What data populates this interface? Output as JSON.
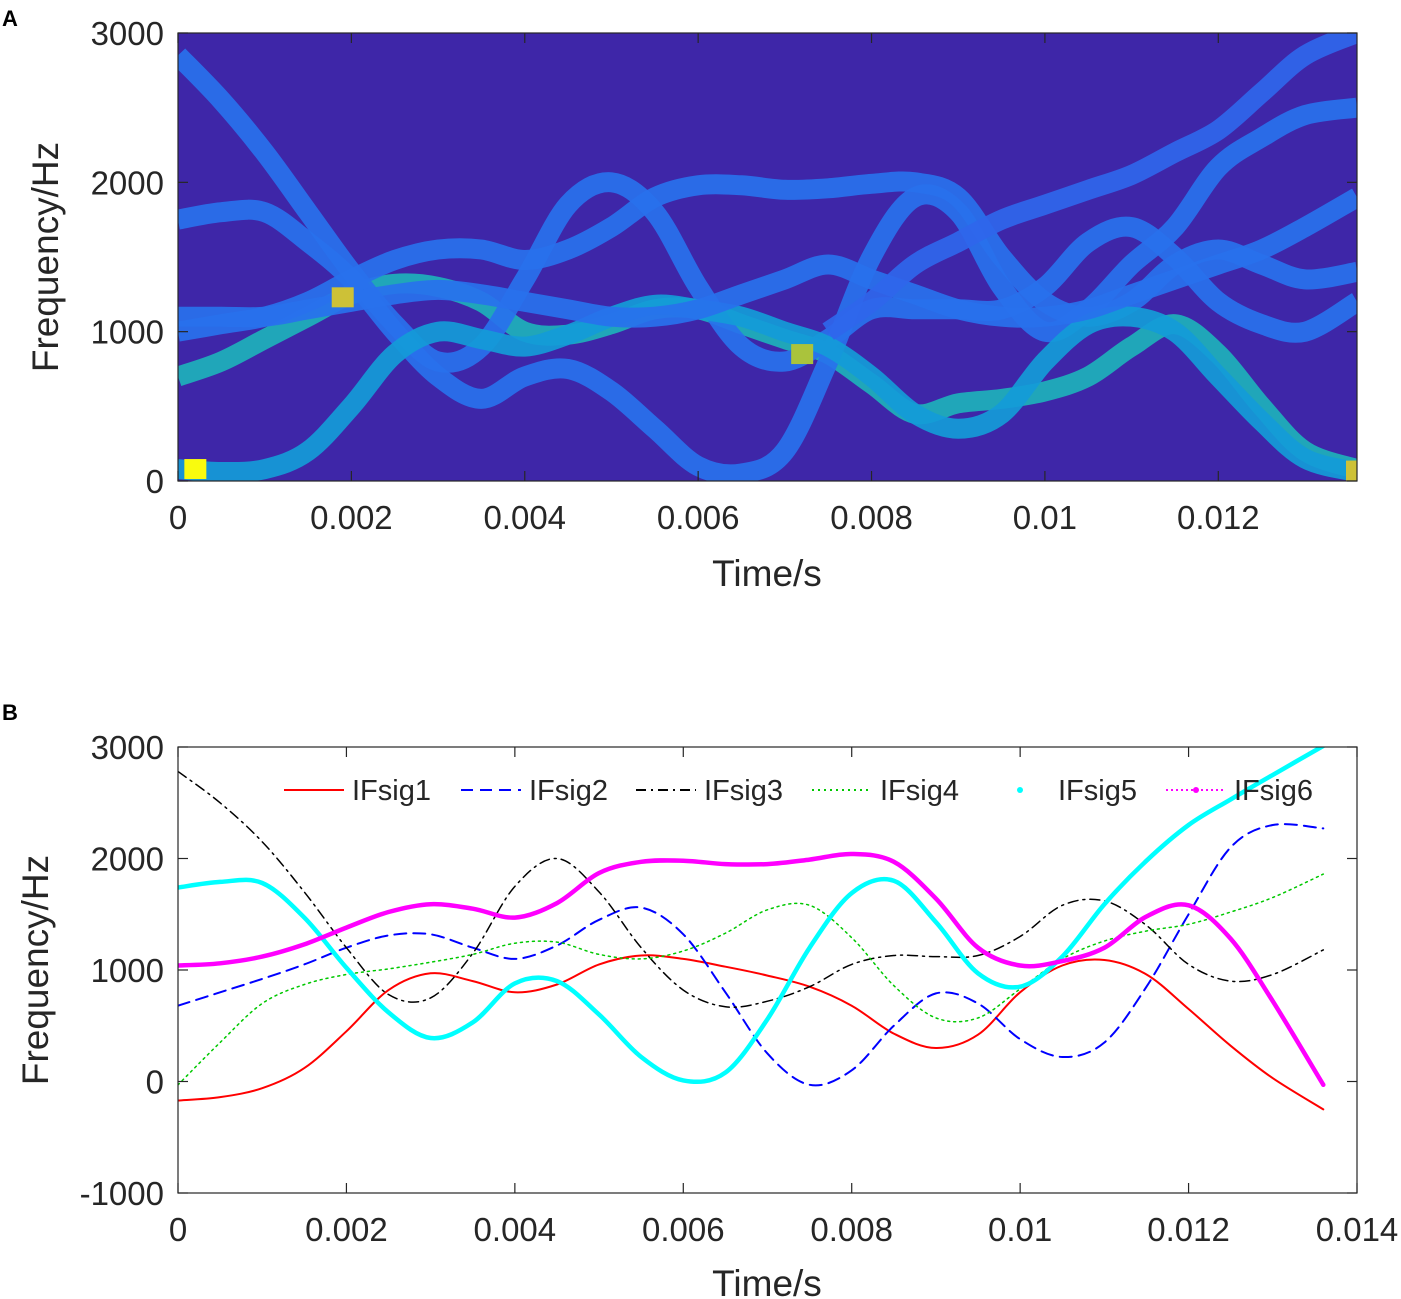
{
  "panels": {
    "a": "A",
    "b": "B"
  },
  "chart_data": [
    {
      "type": "heatmap",
      "panel": "A",
      "xlabel": "Time/s",
      "ylabel": "Frequency/Hz",
      "xlim": [
        0,
        0.0136
      ],
      "ylim": [
        0,
        3000
      ],
      "xticks": [
        0,
        0.002,
        0.004,
        0.006,
        0.008,
        0.01,
        0.012
      ],
      "xtick_labels": [
        "0",
        "0.002",
        "0.004",
        "0.006",
        "0.008",
        "0.01",
        "0.012"
      ],
      "yticks": [
        0,
        1000,
        2000,
        3000
      ],
      "ytick_labels": [
        "0",
        "1000",
        "2000",
        "3000"
      ],
      "colormap": "parula",
      "background_color": "#3e26a8",
      "ridges": [
        {
          "intensity": 0.55,
          "t": [
            0,
            0.0005,
            0.001,
            0.0015,
            0.002,
            0.0025,
            0.003,
            0.0035,
            0.004,
            0.0045,
            0.005,
            0.0055,
            0.006,
            0.0065,
            0.007,
            0.0075,
            0.008,
            0.0085,
            0.009,
            0.0095,
            0.01,
            0.0105,
            0.011,
            0.0115,
            0.012,
            0.0125,
            0.013,
            0.0136
          ],
          "f": [
            700,
            800,
            950,
            1100,
            1250,
            1320,
            1300,
            1200,
            1000,
            980,
            1050,
            1150,
            1150,
            1050,
            950,
            850,
            650,
            450,
            520,
            550,
            600,
            700,
            900,
            1050,
            850,
            500,
            200,
            80
          ]
        },
        {
          "intensity": 0.3,
          "t": [
            0,
            0.0005,
            0.001,
            0.0015,
            0.002,
            0.0025,
            0.003,
            0.0035,
            0.004,
            0.0045,
            0.005,
            0.0055,
            0.006,
            0.0065,
            0.007,
            0.0075,
            0.008,
            0.0085,
            0.009,
            0.0095,
            0.01,
            0.0105,
            0.011,
            0.0115,
            0.012,
            0.0125,
            0.013,
            0.0136
          ],
          "f": [
            1750,
            1800,
            1800,
            1600,
            1350,
            1000,
            700,
            550,
            700,
            750,
            600,
            350,
            100,
            50,
            200,
            800,
            1500,
            1900,
            1800,
            1300,
            1000,
            1150,
            1450,
            1700,
            2100,
            2300,
            2450,
            2500
          ]
        },
        {
          "intensity": 0.3,
          "t": [
            0,
            0.0005,
            0.001,
            0.0015,
            0.002,
            0.0025,
            0.003,
            0.0035,
            0.004,
            0.0045,
            0.005,
            0.0055,
            0.006,
            0.0065,
            0.007,
            0.0075,
            0.008,
            0.0085,
            0.009,
            0.0095,
            0.01,
            0.0105,
            0.011,
            0.0115,
            0.012,
            0.0125,
            0.013,
            0.0136
          ],
          "f": [
            1000,
            1050,
            1100,
            1200,
            1350,
            1480,
            1550,
            1550,
            1480,
            1550,
            1700,
            1900,
            1980,
            1980,
            1950,
            1960,
            1990,
            2000,
            1900,
            1500,
            1200,
            1100,
            1200,
            1450,
            1550,
            1450,
            1350,
            1400
          ]
        },
        {
          "intensity": 0.3,
          "t": [
            0,
            0.0005,
            0.001,
            0.0015,
            0.002,
            0.0025,
            0.003,
            0.0035,
            0.004,
            0.0045,
            0.005,
            0.0055,
            0.006,
            0.0065,
            0.007,
            0.0075,
            0.008,
            0.0085,
            0.009,
            0.0095,
            0.01,
            0.0105,
            0.011,
            0.0115,
            0.012,
            0.0125,
            0.013,
            0.0136
          ],
          "f": [
            2850,
            2550,
            2200,
            1800,
            1400,
            1050,
            800,
            900,
            1350,
            1850,
            2000,
            1800,
            1300,
            900,
            800,
            950,
            1150,
            1150,
            1150,
            1150,
            1300,
            1600,
            1700,
            1500,
            1200,
            1050,
            1000,
            1200
          ]
        },
        {
          "intensity": 0.45,
          "t": [
            0,
            0.0005,
            0.001,
            0.0015,
            0.002,
            0.0025,
            0.003,
            0.0035,
            0.004,
            0.0045,
            0.005,
            0.0055,
            0.006,
            0.0065,
            0.007,
            0.0075,
            0.008,
            0.0085,
            0.009,
            0.0095,
            0.01,
            0.0105,
            0.011,
            0.0115,
            0.012,
            0.0125,
            0.013,
            0.0136
          ],
          "f": [
            80,
            60,
            80,
            200,
            500,
            850,
            1000,
            950,
            900,
            980,
            1100,
            1180,
            1150,
            1100,
            1000,
            900,
            700,
            450,
            350,
            450,
            800,
            1050,
            1100,
            1000,
            700,
            400,
            150,
            60
          ]
        },
        {
          "intensity": 0.3,
          "t": [
            0,
            0.0005,
            0.001,
            0.0015,
            0.002,
            0.0025,
            0.003,
            0.0035,
            0.004,
            0.0045,
            0.005,
            0.0055,
            0.006,
            0.0065,
            0.007,
            0.0075,
            0.008,
            0.0085,
            0.009,
            0.0095,
            0.01,
            0.0105,
            0.011,
            0.0115,
            0.012,
            0.0125,
            0.013,
            0.0136
          ],
          "f": [
            1100,
            1100,
            1100,
            1150,
            1200,
            1250,
            1280,
            1250,
            1200,
            1150,
            1100,
            1100,
            1150,
            1250,
            1350,
            1450,
            1350,
            1250,
            1150,
            1100,
            1100,
            1150,
            1250,
            1350,
            1450,
            1550,
            1700,
            1900
          ]
        },
        {
          "intensity": 0.25,
          "t": [
            0.0075,
            0.008,
            0.0085,
            0.009,
            0.0095,
            0.01,
            0.0105,
            0.011,
            0.0115,
            0.012,
            0.0125,
            0.013,
            0.0136
          ],
          "f": [
            1000,
            1200,
            1450,
            1600,
            1750,
            1850,
            1950,
            2050,
            2200,
            2350,
            2600,
            2850,
            3000
          ]
        }
      ],
      "hotspots": [
        {
          "t": 0.0002,
          "f": 80,
          "intensity": 1.0
        },
        {
          "t": 0.0019,
          "f": 1230,
          "intensity": 0.85
        },
        {
          "t": 0.0072,
          "f": 850,
          "intensity": 0.8
        },
        {
          "t": 0.0136,
          "f": 70,
          "intensity": 0.85
        }
      ]
    },
    {
      "type": "line",
      "panel": "B",
      "xlabel": "Time/s",
      "ylabel": "Frequency/Hz",
      "xlim": [
        0,
        0.014
      ],
      "ylim": [
        -1000,
        3000
      ],
      "xticks": [
        0,
        0.002,
        0.004,
        0.006,
        0.008,
        0.01,
        0.012,
        0.014
      ],
      "xtick_labels": [
        "0",
        "0.002",
        "0.004",
        "0.006",
        "0.008",
        "0.01",
        "0.012",
        "0.014"
      ],
      "yticks": [
        -1000,
        0,
        1000,
        2000,
        3000
      ],
      "ytick_labels": [
        "-1000",
        "0",
        "1000",
        "2000",
        "3000"
      ],
      "legend_position": "top",
      "series": [
        {
          "name": "IFsig1",
          "color": "#ff0000",
          "dash": "solid",
          "width": 2,
          "t": [
            0,
            0.0005,
            0.001,
            0.0015,
            0.002,
            0.0025,
            0.003,
            0.0035,
            0.004,
            0.0045,
            0.005,
            0.0055,
            0.006,
            0.0065,
            0.007,
            0.0075,
            0.008,
            0.0085,
            0.009,
            0.0095,
            0.01,
            0.0105,
            0.011,
            0.0115,
            0.012,
            0.0125,
            0.013,
            0.0136
          ],
          "f": [
            -170,
            -140,
            -60,
            120,
            450,
            820,
            970,
            900,
            800,
            870,
            1050,
            1130,
            1100,
            1030,
            950,
            850,
            680,
            430,
            300,
            420,
            800,
            1040,
            1090,
            960,
            650,
            320,
            30,
            -250
          ]
        },
        {
          "name": "IFsig2",
          "color": "#0000ff",
          "dash": "dash",
          "width": 2,
          "t": [
            0,
            0.0005,
            0.001,
            0.0015,
            0.002,
            0.0025,
            0.003,
            0.0035,
            0.004,
            0.0045,
            0.005,
            0.0055,
            0.006,
            0.0065,
            0.007,
            0.0075,
            0.008,
            0.0085,
            0.009,
            0.0095,
            0.01,
            0.0105,
            0.011,
            0.0115,
            0.012,
            0.0125,
            0.013,
            0.0136
          ],
          "f": [
            680,
            800,
            920,
            1050,
            1200,
            1310,
            1320,
            1200,
            1100,
            1220,
            1450,
            1560,
            1320,
            800,
            250,
            -30,
            100,
            500,
            790,
            700,
            380,
            220,
            350,
            850,
            1500,
            2100,
            2300,
            2270
          ]
        },
        {
          "name": "IFsig3",
          "color": "#000000",
          "dash": "dashdot",
          "width": 1.5,
          "t": [
            0,
            0.0005,
            0.001,
            0.0015,
            0.002,
            0.0025,
            0.003,
            0.0035,
            0.004,
            0.0045,
            0.005,
            0.0055,
            0.006,
            0.0065,
            0.007,
            0.0075,
            0.008,
            0.0085,
            0.009,
            0.0095,
            0.01,
            0.0105,
            0.011,
            0.0115,
            0.012,
            0.0125,
            0.013,
            0.0136
          ],
          "f": [
            2780,
            2500,
            2150,
            1700,
            1200,
            780,
            750,
            1150,
            1750,
            2000,
            1700,
            1200,
            820,
            670,
            720,
            850,
            1050,
            1130,
            1120,
            1130,
            1300,
            1580,
            1620,
            1400,
            1050,
            900,
            960,
            1180
          ]
        },
        {
          "name": "IFsig4",
          "color": "#00c800",
          "dash": "dot",
          "width": 1.5,
          "t": [
            0,
            0.0005,
            0.001,
            0.0015,
            0.002,
            0.0025,
            0.003,
            0.0035,
            0.004,
            0.0045,
            0.005,
            0.0055,
            0.006,
            0.0065,
            0.007,
            0.0075,
            0.008,
            0.0085,
            0.009,
            0.0095,
            0.01,
            0.0105,
            0.011,
            0.0115,
            0.012,
            0.0125,
            0.013,
            0.0136
          ],
          "f": [
            -30,
            350,
            700,
            870,
            960,
            1010,
            1070,
            1140,
            1240,
            1250,
            1140,
            1100,
            1170,
            1330,
            1540,
            1580,
            1290,
            860,
            570,
            570,
            830,
            1100,
            1260,
            1350,
            1410,
            1520,
            1650,
            1860
          ]
        },
        {
          "name": "IFsig5",
          "color": "#00ffff",
          "dash": "solid",
          "width": 4.5,
          "t": [
            0,
            0.0005,
            0.001,
            0.0015,
            0.002,
            0.0025,
            0.003,
            0.0035,
            0.004,
            0.0045,
            0.005,
            0.0055,
            0.006,
            0.0065,
            0.007,
            0.0075,
            0.008,
            0.0085,
            0.009,
            0.0095,
            0.01,
            0.0105,
            0.011,
            0.0115,
            0.012,
            0.0125,
            0.013,
            0.0136
          ],
          "f": [
            1740,
            1790,
            1780,
            1470,
            1020,
            620,
            390,
            530,
            880,
            900,
            600,
            220,
            10,
            80,
            560,
            1200,
            1690,
            1800,
            1430,
            970,
            850,
            1120,
            1590,
            1980,
            2300,
            2530,
            2750,
            3010
          ]
        },
        {
          "name": "IFsig6",
          "color": "#ff00ff",
          "dash": "dotmark",
          "width": 4.5,
          "t": [
            0,
            0.0005,
            0.001,
            0.0015,
            0.002,
            0.0025,
            0.003,
            0.0035,
            0.004,
            0.0045,
            0.005,
            0.0055,
            0.006,
            0.0065,
            0.007,
            0.0075,
            0.008,
            0.0085,
            0.009,
            0.0095,
            0.01,
            0.0105,
            0.011,
            0.0115,
            0.012,
            0.0125,
            0.013,
            0.0136
          ],
          "f": [
            1040,
            1060,
            1120,
            1230,
            1380,
            1520,
            1590,
            1550,
            1470,
            1600,
            1870,
            1970,
            1980,
            1950,
            1950,
            1990,
            2040,
            1970,
            1640,
            1200,
            1040,
            1080,
            1200,
            1480,
            1580,
            1280,
            720,
            -30
          ]
        }
      ]
    }
  ]
}
